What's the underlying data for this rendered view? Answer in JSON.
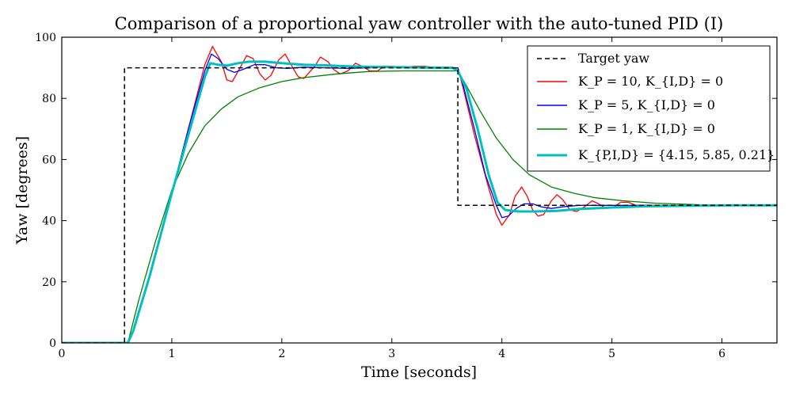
{
  "chart_data": {
    "type": "line",
    "title": "Comparison of a proportional yaw controller with the auto-tuned PID (I)",
    "xlabel": "Time [seconds]",
    "ylabel": "Yaw [degrees]",
    "xlim": [
      0,
      6.5
    ],
    "ylim": [
      0,
      100
    ],
    "xticks": [
      0,
      1,
      2,
      3,
      4,
      5,
      6
    ],
    "yticks": [
      0,
      20,
      40,
      60,
      80,
      100
    ],
    "grid": false,
    "legend_position": "top-right",
    "series": [
      {
        "name": "Target yaw",
        "color": "#000000",
        "style": "dashed",
        "points": [
          [
            0,
            0
          ],
          [
            0.57,
            0
          ],
          [
            0.57,
            90
          ],
          [
            3.6,
            90
          ],
          [
            3.6,
            45
          ],
          [
            6.5,
            45
          ]
        ]
      },
      {
        "name": "K_P = 10, K_{I,D} = 0",
        "color": "#ff0000",
        "style": "solid",
        "points": [
          [
            0,
            0
          ],
          [
            0.6,
            0
          ],
          [
            0.65,
            4
          ],
          [
            0.8,
            22
          ],
          [
            1.0,
            49
          ],
          [
            1.15,
            70
          ],
          [
            1.3,
            91
          ],
          [
            1.37,
            97
          ],
          [
            1.45,
            92
          ],
          [
            1.5,
            86
          ],
          [
            1.55,
            85.5
          ],
          [
            1.62,
            90
          ],
          [
            1.68,
            94
          ],
          [
            1.74,
            93
          ],
          [
            1.8,
            88
          ],
          [
            1.85,
            86
          ],
          [
            1.9,
            87.5
          ],
          [
            1.97,
            92.5
          ],
          [
            2.03,
            94.5
          ],
          [
            2.1,
            90
          ],
          [
            2.15,
            87
          ],
          [
            2.2,
            86.5
          ],
          [
            2.3,
            90.5
          ],
          [
            2.35,
            93.5
          ],
          [
            2.42,
            92
          ],
          [
            2.47,
            89.5
          ],
          [
            2.53,
            88
          ],
          [
            2.6,
            89
          ],
          [
            2.67,
            91.5
          ],
          [
            2.73,
            90.5
          ],
          [
            2.8,
            89
          ],
          [
            2.87,
            89
          ],
          [
            2.93,
            90.5
          ],
          [
            3.0,
            90.5
          ],
          [
            3.1,
            90
          ],
          [
            3.2,
            90.5
          ],
          [
            3.3,
            90.5
          ],
          [
            3.4,
            90
          ],
          [
            3.52,
            90
          ],
          [
            3.6,
            90
          ],
          [
            3.65,
            83
          ],
          [
            3.75,
            68
          ],
          [
            3.87,
            52
          ],
          [
            3.95,
            42
          ],
          [
            4.0,
            38.5
          ],
          [
            4.07,
            42
          ],
          [
            4.12,
            48
          ],
          [
            4.18,
            51
          ],
          [
            4.23,
            48
          ],
          [
            4.28,
            43.5
          ],
          [
            4.33,
            41.5
          ],
          [
            4.38,
            42
          ],
          [
            4.45,
            46.5
          ],
          [
            4.5,
            48.5
          ],
          [
            4.55,
            47
          ],
          [
            4.62,
            43.5
          ],
          [
            4.68,
            43
          ],
          [
            4.75,
            44.5
          ],
          [
            4.82,
            46.5
          ],
          [
            4.88,
            45.5
          ],
          [
            4.95,
            44
          ],
          [
            5.02,
            44.5
          ],
          [
            5.08,
            46
          ],
          [
            5.15,
            46
          ],
          [
            5.22,
            45
          ],
          [
            5.3,
            45
          ],
          [
            5.4,
            45
          ],
          [
            5.6,
            45
          ],
          [
            6.0,
            45
          ],
          [
            6.5,
            45
          ]
        ]
      },
      {
        "name": "K_P = 5, K_{I,D} = 0",
        "color": "#0000ff",
        "style": "solid",
        "points": [
          [
            0,
            0
          ],
          [
            0.6,
            0
          ],
          [
            0.65,
            4
          ],
          [
            0.8,
            22
          ],
          [
            1.0,
            49
          ],
          [
            1.15,
            70
          ],
          [
            1.3,
            89
          ],
          [
            1.36,
            94.5
          ],
          [
            1.42,
            93
          ],
          [
            1.5,
            89.5
          ],
          [
            1.57,
            88.5
          ],
          [
            1.65,
            89.5
          ],
          [
            1.75,
            91
          ],
          [
            1.85,
            91
          ],
          [
            1.95,
            90
          ],
          [
            2.05,
            89.8
          ],
          [
            2.2,
            90.2
          ],
          [
            2.4,
            90
          ],
          [
            2.6,
            89.8
          ],
          [
            2.8,
            90
          ],
          [
            3.0,
            90.2
          ],
          [
            3.2,
            90
          ],
          [
            3.4,
            90
          ],
          [
            3.6,
            90
          ],
          [
            3.65,
            84
          ],
          [
            3.75,
            70
          ],
          [
            3.85,
            55
          ],
          [
            3.95,
            45
          ],
          [
            4.0,
            41
          ],
          [
            4.06,
            41.5
          ],
          [
            4.13,
            44
          ],
          [
            4.2,
            45.5
          ],
          [
            4.28,
            45.5
          ],
          [
            4.36,
            44.5
          ],
          [
            4.45,
            44
          ],
          [
            4.55,
            44.5
          ],
          [
            4.7,
            45
          ],
          [
            5.0,
            45
          ],
          [
            5.5,
            45
          ],
          [
            6.0,
            45
          ],
          [
            6.5,
            45
          ]
        ]
      },
      {
        "name": "K_P = 1, K_{I,D} = 0",
        "color": "#008000",
        "style": "solid",
        "points": [
          [
            0,
            0
          ],
          [
            0.6,
            0
          ],
          [
            0.7,
            14
          ],
          [
            0.85,
            33
          ],
          [
            1.0,
            50
          ],
          [
            1.15,
            62
          ],
          [
            1.3,
            71
          ],
          [
            1.45,
            76.5
          ],
          [
            1.6,
            80.5
          ],
          [
            1.8,
            83.5
          ],
          [
            2.0,
            85.5
          ],
          [
            2.2,
            86.8
          ],
          [
            2.5,
            88
          ],
          [
            2.8,
            88.8
          ],
          [
            3.1,
            89
          ],
          [
            3.4,
            89
          ],
          [
            3.6,
            89
          ],
          [
            3.68,
            84
          ],
          [
            3.8,
            76
          ],
          [
            3.95,
            67
          ],
          [
            4.1,
            60
          ],
          [
            4.25,
            55
          ],
          [
            4.45,
            51
          ],
          [
            4.65,
            49
          ],
          [
            4.85,
            47.5
          ],
          [
            5.1,
            46.5
          ],
          [
            5.4,
            45.7
          ],
          [
            5.8,
            45.2
          ],
          [
            6.2,
            45
          ],
          [
            6.5,
            45
          ]
        ]
      },
      {
        "name": "K_{P,I,D} = {4.15, 5.85, 0.21}",
        "color": "#00bfbf",
        "style": "solid-thick",
        "points": [
          [
            0,
            0
          ],
          [
            0.6,
            0
          ],
          [
            0.65,
            4
          ],
          [
            0.8,
            22
          ],
          [
            1.0,
            49
          ],
          [
            1.15,
            68
          ],
          [
            1.3,
            87
          ],
          [
            1.35,
            91.5
          ],
          [
            1.42,
            91
          ],
          [
            1.5,
            90.7
          ],
          [
            1.6,
            91.5
          ],
          [
            1.7,
            92
          ],
          [
            1.85,
            92
          ],
          [
            2.0,
            91.5
          ],
          [
            2.2,
            91
          ],
          [
            2.4,
            90.8
          ],
          [
            2.6,
            90.5
          ],
          [
            2.8,
            90.3
          ],
          [
            3.0,
            90.2
          ],
          [
            3.3,
            90.1
          ],
          [
            3.55,
            90
          ],
          [
            3.6,
            89
          ],
          [
            3.68,
            83
          ],
          [
            3.78,
            70
          ],
          [
            3.88,
            55
          ],
          [
            3.96,
            46
          ],
          [
            4.03,
            43.5
          ],
          [
            4.15,
            43
          ],
          [
            4.3,
            43
          ],
          [
            4.5,
            43.2
          ],
          [
            4.7,
            43.8
          ],
          [
            5.0,
            44.3
          ],
          [
            5.3,
            44.7
          ],
          [
            5.7,
            44.9
          ],
          [
            6.1,
            45
          ],
          [
            6.5,
            45
          ]
        ]
      }
    ]
  }
}
